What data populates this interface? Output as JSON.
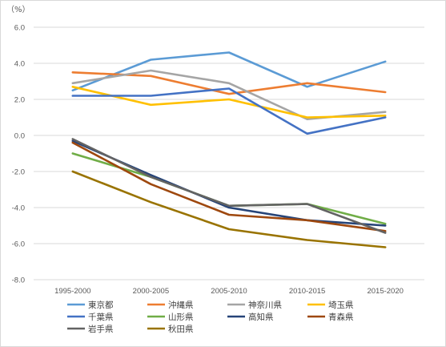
{
  "chart_data": {
    "type": "line",
    "unit_label": "（%）",
    "categories": [
      "1995-2000",
      "2000-2005",
      "2005-2010",
      "2010-2015",
      "2015-2020"
    ],
    "ylim": [
      -8.0,
      6.0
    ],
    "yticks": [
      "6.0",
      "4.0",
      "2.0",
      "0.0",
      "-2.0",
      "-4.0",
      "-6.0",
      "-8.0"
    ],
    "grid": true,
    "legend_position": "bottom",
    "series": [
      {
        "name": "東京都",
        "color": "#5b9bd5",
        "values": [
          2.5,
          4.2,
          4.6,
          2.7,
          4.1
        ]
      },
      {
        "name": "沖縄県",
        "color": "#ed7d31",
        "values": [
          3.5,
          3.3,
          2.3,
          2.9,
          2.4
        ]
      },
      {
        "name": "神奈川県",
        "color": "#a5a5a5",
        "values": [
          2.9,
          3.6,
          2.9,
          0.9,
          1.3
        ]
      },
      {
        "name": "埼玉県",
        "color": "#ffc000",
        "values": [
          2.7,
          1.7,
          2.0,
          1.0,
          1.1
        ]
      },
      {
        "name": "千葉県",
        "color": "#4472c4",
        "values": [
          2.2,
          2.2,
          2.6,
          0.1,
          1.0
        ]
      },
      {
        "name": "山形県",
        "color": "#70ad47",
        "values": [
          -1.0,
          -2.3,
          -3.9,
          -3.8,
          -4.9
        ]
      },
      {
        "name": "高知県",
        "color": "#264478",
        "values": [
          -0.3,
          -2.2,
          -4.0,
          -4.7,
          -5.0
        ]
      },
      {
        "name": "青森県",
        "color": "#9e480e",
        "values": [
          -0.4,
          -2.7,
          -4.4,
          -4.7,
          -5.3
        ]
      },
      {
        "name": "岩手県",
        "color": "#636363",
        "values": [
          -0.2,
          -2.3,
          -3.9,
          -3.8,
          -5.4
        ]
      },
      {
        "name": "秋田県",
        "color": "#997300",
        "values": [
          -2.0,
          -3.7,
          -5.2,
          -5.8,
          -6.2
        ]
      }
    ]
  }
}
